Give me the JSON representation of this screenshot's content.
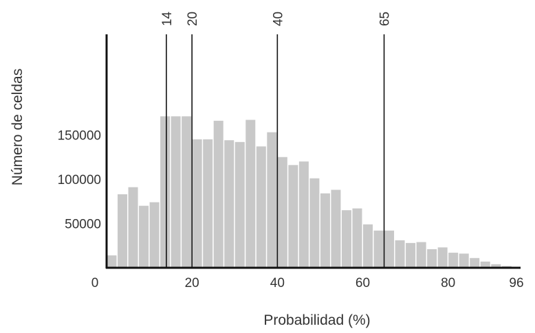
{
  "chart_data": {
    "type": "bar",
    "title": "",
    "xlabel": "Probabilidad (%)",
    "ylabel": "Número de celdas",
    "xlim": [
      0,
      96
    ],
    "ylim": [
      0,
      180000
    ],
    "x_ticks": [
      {
        "value": 0,
        "label": "0"
      },
      {
        "value": 20,
        "label": "20"
      },
      {
        "value": 40,
        "label": "40"
      },
      {
        "value": 60,
        "label": "60"
      },
      {
        "value": 80,
        "label": "80"
      },
      {
        "value": 96,
        "label": "96"
      }
    ],
    "y_ticks": [
      {
        "value": 50000,
        "label": "50000"
      },
      {
        "value": 100000,
        "label": "100000"
      },
      {
        "value": 150000,
        "label": "150000"
      }
    ],
    "markers": [
      {
        "value": 14,
        "label": "14"
      },
      {
        "value": 20,
        "label": "20"
      },
      {
        "value": 40,
        "label": "40"
      },
      {
        "value": 65,
        "label": "65"
      }
    ],
    "bin_width": 2.5,
    "x": [
      1.25,
      3.75,
      6.25,
      8.75,
      11.25,
      13.75,
      16.25,
      18.75,
      21.25,
      23.75,
      26.25,
      28.75,
      31.25,
      33.75,
      36.25,
      38.75,
      41.25,
      43.75,
      46.25,
      48.75,
      51.25,
      53.75,
      56.25,
      58.75,
      61.25,
      63.75,
      66.25,
      68.75,
      71.25,
      73.75,
      76.25,
      78.75,
      81.25,
      83.75,
      86.25,
      88.75,
      91.25,
      93.75
    ],
    "values": [
      14000,
      83000,
      91000,
      70000,
      74000,
      171000,
      171000,
      171000,
      145000,
      145000,
      166000,
      144000,
      142000,
      167000,
      137000,
      153000,
      125000,
      116000,
      120000,
      101000,
      84000,
      88000,
      65000,
      67000,
      49000,
      42000,
      42000,
      31000,
      28000,
      29000,
      21000,
      23000,
      17000,
      16000,
      11000,
      7000,
      4000,
      2000
    ],
    "bar_color": "#c8c8c8",
    "grid": false
  }
}
